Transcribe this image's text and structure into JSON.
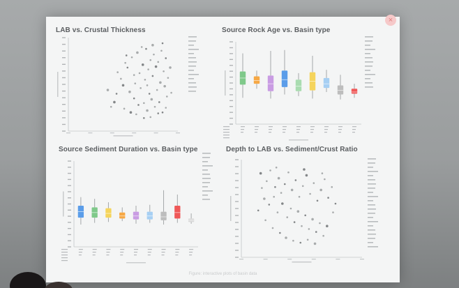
{
  "slide": {
    "caption": "Figure: interactive plots of basin data"
  },
  "controls": {
    "close_icon": "close-icon",
    "close_glyph": "×",
    "accent": "#e07f7f"
  },
  "chart_data": [
    {
      "id": "lab-vs-crustal",
      "type": "scatter",
      "title": "LAB vs. Crustal Thickness",
      "legend": "right",
      "xlim": [
        0,
        10
      ],
      "ylim": [
        0,
        10
      ],
      "points": [
        [
          4.2,
          3.1
        ],
        [
          4.8,
          5.6
        ],
        [
          5.1,
          2.4
        ],
        [
          5.4,
          6.8
        ],
        [
          5.6,
          4.2
        ],
        [
          5.8,
          7.9
        ],
        [
          6.0,
          3.5
        ],
        [
          6.1,
          5.1
        ],
        [
          6.3,
          8.4
        ],
        [
          6.4,
          2.8
        ],
        [
          6.5,
          6.2
        ],
        [
          6.6,
          4.6
        ],
        [
          6.8,
          7.1
        ],
        [
          6.9,
          3.0
        ],
        [
          7.0,
          5.5
        ],
        [
          7.1,
          8.8
        ],
        [
          7.2,
          2.2
        ],
        [
          7.3,
          6.6
        ],
        [
          7.4,
          4.0
        ],
        [
          7.5,
          7.6
        ],
        [
          7.6,
          3.4
        ],
        [
          7.7,
          5.9
        ],
        [
          7.8,
          8.2
        ],
        [
          7.9,
          2.6
        ],
        [
          8.0,
          6.9
        ],
        [
          8.1,
          4.4
        ],
        [
          8.2,
          7.4
        ],
        [
          8.3,
          3.1
        ],
        [
          8.4,
          5.2
        ],
        [
          8.5,
          8.6
        ],
        [
          8.6,
          2.0
        ],
        [
          8.7,
          6.4
        ],
        [
          8.8,
          4.8
        ],
        [
          8.9,
          7.8
        ],
        [
          9.0,
          3.7
        ],
        [
          9.1,
          5.7
        ],
        [
          5.0,
          4.9
        ],
        [
          6.2,
          1.8
        ],
        [
          7.5,
          1.5
        ],
        [
          8.2,
          1.9
        ],
        [
          3.6,
          4.4
        ],
        [
          4.5,
          6.3
        ],
        [
          5.3,
          8.1
        ],
        [
          6.7,
          9.0
        ],
        [
          7.7,
          9.2
        ],
        [
          8.6,
          9.4
        ],
        [
          6.0,
          6.0
        ],
        [
          7.2,
          4.9
        ],
        [
          5.7,
          2.0
        ],
        [
          8.9,
          2.5
        ],
        [
          3.9,
          2.6
        ],
        [
          4.4,
          4.0
        ],
        [
          9.3,
          6.8
        ],
        [
          9.4,
          4.1
        ],
        [
          6.9,
          1.4
        ],
        [
          5.2,
          7.3
        ]
      ]
    },
    {
      "id": "source-rock-age",
      "type": "box",
      "title": "Source Rock Age vs. Basin type",
      "legend": "right",
      "ylim": [
        0,
        10
      ],
      "boxes": [
        {
          "color": "#7fc98a",
          "min": 3.2,
          "q1": 4.8,
          "median": 5.6,
          "q3": 6.4,
          "max": 8.6
        },
        {
          "color": "#f6a845",
          "min": 4.3,
          "q1": 4.9,
          "median": 5.3,
          "q3": 5.8,
          "max": 6.5
        },
        {
          "color": "#c99ce3",
          "min": 3.1,
          "q1": 4.0,
          "median": 4.9,
          "q3": 5.9,
          "max": 8.9
        },
        {
          "color": "#5b9de9",
          "min": 3.6,
          "q1": 4.5,
          "median": 5.4,
          "q3": 6.5,
          "max": 9.0
        },
        {
          "color": "#a9dcb0",
          "min": 3.4,
          "q1": 4.0,
          "median": 4.6,
          "q3": 5.4,
          "max": 6.2
        },
        {
          "color": "#f5d45c",
          "min": 3.1,
          "q1": 4.1,
          "median": 5.2,
          "q3": 6.3,
          "max": 8.3
        },
        {
          "color": "#a6cff3",
          "min": 3.9,
          "q1": 4.4,
          "median": 4.9,
          "q3": 5.6,
          "max": 6.6
        },
        {
          "color": "#bdbdbd",
          "min": 3.0,
          "q1": 3.6,
          "median": 4.1,
          "q3": 4.7,
          "max": 6.0
        },
        {
          "color": "#ef5858",
          "min": 3.2,
          "q1": 3.7,
          "median": 3.9,
          "q3": 4.3,
          "max": 4.9
        }
      ]
    },
    {
      "id": "source-sediment-duration",
      "type": "box",
      "title": "Source Sediment Duration vs. Basin type",
      "legend": "right",
      "ylim": [
        0,
        10
      ],
      "boxes": [
        {
          "color": "#5b9de9",
          "min": 2.6,
          "q1": 3.4,
          "median": 4.1,
          "q3": 4.8,
          "max": 5.8
        },
        {
          "color": "#7fc98a",
          "min": 2.8,
          "q1": 3.4,
          "median": 4.0,
          "q3": 4.6,
          "max": 5.6
        },
        {
          "color": "#f5d45c",
          "min": 2.9,
          "q1": 3.4,
          "median": 3.9,
          "q3": 4.5,
          "max": 5.2
        },
        {
          "color": "#f6a845",
          "min": 3.0,
          "q1": 3.3,
          "median": 3.6,
          "q3": 4.0,
          "max": 4.6
        },
        {
          "color": "#c99ce3",
          "min": 2.7,
          "q1": 3.2,
          "median": 3.6,
          "q3": 4.1,
          "max": 4.8
        },
        {
          "color": "#a6cff3",
          "min": 2.8,
          "q1": 3.2,
          "median": 3.6,
          "q3": 4.1,
          "max": 4.9
        },
        {
          "color": "#bdbdbd",
          "min": 2.6,
          "q1": 3.1,
          "median": 3.5,
          "q3": 4.1,
          "max": 6.6
        },
        {
          "color": "#ef5858",
          "min": 2.8,
          "q1": 3.3,
          "median": 4.0,
          "q3": 4.8,
          "max": 6.1
        },
        {
          "color": "#d9d9d9",
          "min": 2.7,
          "q1": 2.9,
          "median": 3.1,
          "q3": 3.3,
          "max": 3.9
        }
      ]
    },
    {
      "id": "depth-to-lab",
      "type": "scatter",
      "title": "Depth to LAB vs. Sediment/Crust Ratio",
      "legend": "right",
      "xlim": [
        0,
        10
      ],
      "ylim": [
        0,
        10
      ],
      "points": [
        [
          1.6,
          8.6
        ],
        [
          2.1,
          7.8
        ],
        [
          2.4,
          8.9
        ],
        [
          2.8,
          7.2
        ],
        [
          3.1,
          8.1
        ],
        [
          3.3,
          6.6
        ],
        [
          3.6,
          7.5
        ],
        [
          3.9,
          8.7
        ],
        [
          4.2,
          6.9
        ],
        [
          4.5,
          7.9
        ],
        [
          4.8,
          6.2
        ],
        [
          5.1,
          7.3
        ],
        [
          5.4,
          8.4
        ],
        [
          5.7,
          6.5
        ],
        [
          6.0,
          7.6
        ],
        [
          6.3,
          5.8
        ],
        [
          6.6,
          6.9
        ],
        [
          6.9,
          8.0
        ],
        [
          7.2,
          6.1
        ],
        [
          7.5,
          7.2
        ],
        [
          1.9,
          6.0
        ],
        [
          2.3,
          5.4
        ],
        [
          2.7,
          6.2
        ],
        [
          3.0,
          4.6
        ],
        [
          3.4,
          5.5
        ],
        [
          3.8,
          4.1
        ],
        [
          4.1,
          5.0
        ],
        [
          4.4,
          3.6
        ],
        [
          4.7,
          4.7
        ],
        [
          5.0,
          3.2
        ],
        [
          5.3,
          4.3
        ],
        [
          5.6,
          2.9
        ],
        [
          5.9,
          3.9
        ],
        [
          6.2,
          2.6
        ],
        [
          6.5,
          3.5
        ],
        [
          6.8,
          2.2
        ],
        [
          7.1,
          3.2
        ],
        [
          2.0,
          3.8
        ],
        [
          2.6,
          3.0
        ],
        [
          3.2,
          2.5
        ],
        [
          3.7,
          2.0
        ],
        [
          4.3,
          1.7
        ],
        [
          4.9,
          1.5
        ],
        [
          5.5,
          1.8
        ],
        [
          6.1,
          1.4
        ],
        [
          1.4,
          4.8
        ],
        [
          1.7,
          7.1
        ],
        [
          2.9,
          9.2
        ],
        [
          5.2,
          9.0
        ],
        [
          6.7,
          8.6
        ],
        [
          7.6,
          4.6
        ],
        [
          7.8,
          5.5
        ]
      ]
    }
  ]
}
